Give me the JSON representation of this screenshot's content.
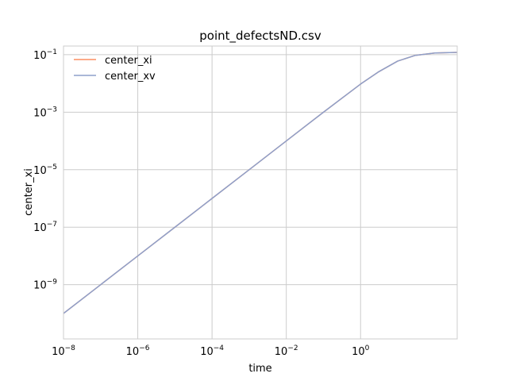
{
  "chart_data": {
    "type": "line",
    "title": "point_defectsND.csv",
    "xlabel": "time",
    "ylabel": "center_xi",
    "xscale": "log",
    "yscale": "log",
    "xlim": [
      1e-08,
      400
    ],
    "ylim": [
      1.3e-11,
      0.2
    ],
    "xticks": [
      {
        "value": 1e-08,
        "base": "10",
        "exp": "−8"
      },
      {
        "value": 1e-06,
        "base": "10",
        "exp": "−6"
      },
      {
        "value": 0.0001,
        "base": "10",
        "exp": "−4"
      },
      {
        "value": 0.01,
        "base": "10",
        "exp": "−2"
      },
      {
        "value": 1,
        "base": "10",
        "exp": "0"
      }
    ],
    "yticks": [
      {
        "value": 1e-09,
        "base": "10",
        "exp": "−9"
      },
      {
        "value": 1e-07,
        "base": "10",
        "exp": "−7"
      },
      {
        "value": 1e-05,
        "base": "10",
        "exp": "−5"
      },
      {
        "value": 0.001,
        "base": "10",
        "exp": "−3"
      },
      {
        "value": 0.1,
        "base": "10",
        "exp": "−1"
      }
    ],
    "grid": true,
    "legend_position": "top-left",
    "series": [
      {
        "name": "center_xi",
        "color": "#fc8d62",
        "x": [
          1e-08,
          1e-07,
          1e-06,
          1e-05,
          0.0001,
          0.001,
          0.01,
          0.1,
          1,
          3,
          10,
          30,
          100,
          400
        ],
        "y": [
          1e-10,
          1e-09,
          1e-08,
          1e-07,
          1e-06,
          1e-05,
          0.0001,
          0.001,
          0.0095,
          0.025,
          0.06,
          0.095,
          0.115,
          0.12
        ]
      },
      {
        "name": "center_xv",
        "color": "#8da0cb",
        "x": [
          1e-08,
          1e-07,
          1e-06,
          1e-05,
          0.0001,
          0.001,
          0.01,
          0.1,
          1,
          3,
          10,
          30,
          100,
          400
        ],
        "y": [
          1e-10,
          1e-09,
          1e-08,
          1e-07,
          1e-06,
          1e-05,
          0.0001,
          0.001,
          0.0095,
          0.025,
          0.06,
          0.095,
          0.115,
          0.12
        ]
      }
    ]
  }
}
